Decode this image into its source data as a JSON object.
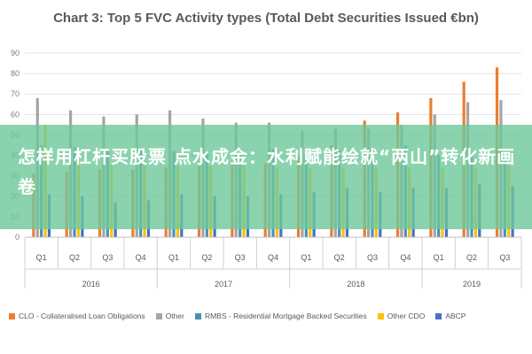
{
  "chart_data": {
    "type": "bar",
    "title": "Chart 3: Top 5 FVC Activity types (Total Debt Securities Issued €bn)",
    "ylim": [
      0,
      90
    ],
    "yticks": [
      0,
      10,
      20,
      30,
      40,
      50,
      60,
      70,
      80,
      90
    ],
    "grid": true,
    "legend_position": "bottom",
    "categories": [
      "Q1",
      "Q2",
      "Q3",
      "Q4",
      "Q1",
      "Q2",
      "Q3",
      "Q4",
      "Q1",
      "Q2",
      "Q3",
      "Q4",
      "Q1",
      "Q2",
      "Q3"
    ],
    "years": [
      {
        "label": "2016",
        "span": 4
      },
      {
        "label": "2017",
        "span": 4
      },
      {
        "label": "2018",
        "span": 4
      },
      {
        "label": "2019",
        "span": 3
      }
    ],
    "series": [
      {
        "name": "CLO - Collateralised Loan Obligations",
        "color": "#ED7D31",
        "values": [
          31,
          32,
          33,
          33,
          34,
          35,
          36,
          36,
          40,
          45,
          57,
          61,
          68,
          76,
          83
        ]
      },
      {
        "name": "Other",
        "color": "#A5A5A5",
        "values": [
          68,
          62,
          59,
          60,
          62,
          58,
          56,
          56,
          52,
          53,
          53,
          55,
          60,
          66,
          67
        ]
      },
      {
        "name": "RMBS - Residential Mortgage Backed Securities",
        "color": "#4A90B8",
        "values": [
          45,
          44,
          42,
          44,
          42,
          42,
          40,
          43,
          41,
          43,
          44,
          45,
          40,
          41,
          40
        ]
      },
      {
        "name": "Other CDO",
        "color": "#FFC000",
        "values": [
          55,
          38,
          36,
          35,
          35,
          35,
          35,
          34,
          34,
          34,
          34,
          34,
          34,
          34,
          35
        ]
      },
      {
        "name": "ABCP",
        "color": "#4472C4",
        "values": [
          21,
          20,
          17,
          18,
          21,
          20,
          20,
          21,
          22,
          24,
          22,
          24,
          24,
          26,
          25
        ]
      }
    ]
  },
  "overlay": {
    "text": "怎样用杠杆买股票 点水成金：水利赋能绘就“两山”转化新画卷"
  }
}
